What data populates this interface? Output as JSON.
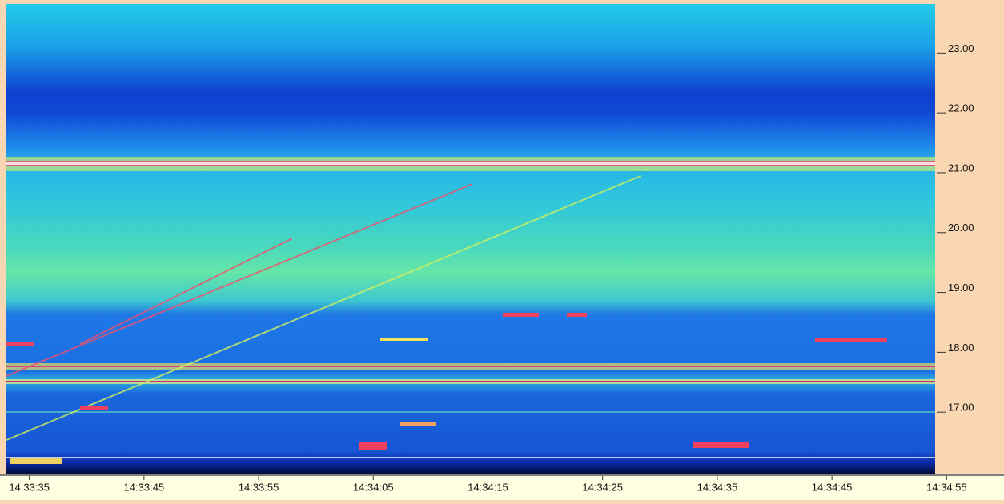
{
  "chart_data": {
    "type": "spectrogram",
    "xlim": [
      "14:33:33",
      "14:34:54"
    ],
    "xticks": [
      "14:33:35",
      "14:33:45",
      "14:33:55",
      "14:34:05",
      "14:34:15",
      "14:34:25",
      "14:34:35",
      "14:34:45",
      "14:34:55"
    ],
    "ylim": [
      15.96,
      23.82
    ],
    "yticks": [
      {
        "value": 17,
        "label": "17.00"
      },
      {
        "value": 18,
        "label": "18.00"
      },
      {
        "value": 19,
        "label": "19.00"
      },
      {
        "value": 20,
        "label": "20.00"
      },
      {
        "value": 21,
        "label": "21.00"
      },
      {
        "value": 22,
        "label": "22.00"
      },
      {
        "value": 23,
        "label": "23.00"
      }
    ]
  }
}
